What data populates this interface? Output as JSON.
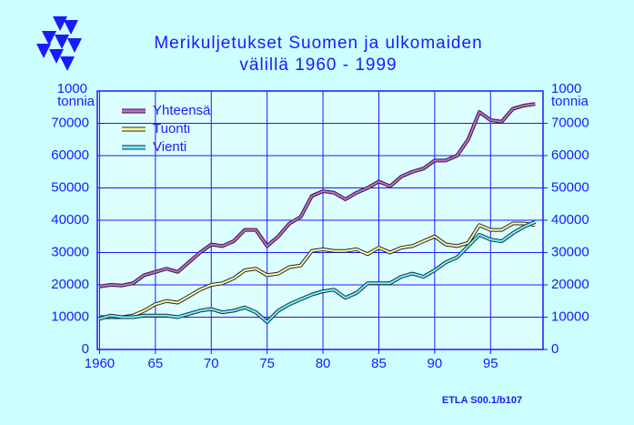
{
  "chart_data": {
    "type": "line",
    "title": "Merikuljetukset  Suomen  ja  ulkomaiden",
    "subtitle": "välillä  1960 - 1999",
    "ylabel": [
      "1000",
      "tonnia"
    ],
    "y2label": [
      "1000",
      "tonnia"
    ],
    "source": "ETLA S00.1/b107",
    "x": [
      1960,
      1961,
      1962,
      1963,
      1964,
      1965,
      1966,
      1967,
      1968,
      1969,
      1970,
      1971,
      1972,
      1973,
      1974,
      1975,
      1976,
      1977,
      1978,
      1979,
      1980,
      1981,
      1982,
      1983,
      1984,
      1985,
      1986,
      1987,
      1988,
      1989,
      1990,
      1991,
      1992,
      1993,
      1994,
      1995,
      1996,
      1997,
      1998,
      1999
    ],
    "series": [
      {
        "name": "Yhteensä",
        "color": "#cc66cc",
        "values": [
          19500,
          20000,
          19800,
          20500,
          23000,
          24000,
          25000,
          24000,
          27000,
          30000,
          32500,
          32000,
          33500,
          37000,
          37000,
          32000,
          35000,
          39000,
          41000,
          47500,
          49000,
          48500,
          46500,
          48500,
          50000,
          52000,
          50500,
          53500,
          55000,
          56000,
          58500,
          58500,
          60000,
          65000,
          73500,
          71000,
          70500,
          74500,
          75500,
          76000
        ]
      },
      {
        "name": "Tuonti",
        "color": "#ffff99",
        "values": [
          10000,
          10000,
          10000,
          10500,
          12000,
          14000,
          15000,
          14500,
          16500,
          18500,
          20000,
          20500,
          22000,
          24500,
          25000,
          23000,
          23500,
          25500,
          26000,
          30500,
          31000,
          30500,
          30500,
          31000,
          29500,
          31500,
          30000,
          31500,
          32000,
          33500,
          35000,
          32500,
          32000,
          33000,
          38500,
          37000,
          37000,
          39000,
          39000,
          38500
        ]
      },
      {
        "name": "Vienti",
        "color": "#66ffff",
        "values": [
          9500,
          10500,
          10000,
          10000,
          10500,
          10500,
          10500,
          10000,
          11000,
          12000,
          12500,
          11500,
          12000,
          13000,
          11500,
          8500,
          12000,
          14000,
          15500,
          17000,
          18000,
          18500,
          16000,
          17500,
          20500,
          20500,
          20500,
          22500,
          23500,
          22500,
          24500,
          27000,
          28500,
          32000,
          35500,
          34000,
          33500,
          36000,
          38000,
          39500
        ]
      }
    ],
    "xlim": [
      1959.8,
      1999.7
    ],
    "xticks": [
      {
        "value": 1960,
        "label": "1960"
      },
      {
        "value": 1965,
        "label": "65"
      },
      {
        "value": 1970,
        "label": "70"
      },
      {
        "value": 1975,
        "label": "75"
      },
      {
        "value": 1980,
        "label": "80"
      },
      {
        "value": 1985,
        "label": "85"
      },
      {
        "value": 1990,
        "label": "90"
      },
      {
        "value": 1995,
        "label": "95"
      }
    ],
    "ylim": [
      0,
      80000
    ],
    "yticks": [
      0,
      10000,
      20000,
      30000,
      40000,
      50000,
      60000,
      70000
    ],
    "y2lim": [
      0,
      80000
    ],
    "y2ticks": [
      0,
      10000,
      20000,
      30000,
      40000,
      50000,
      60000,
      70000
    ],
    "grid": true,
    "legend": "upper left"
  }
}
